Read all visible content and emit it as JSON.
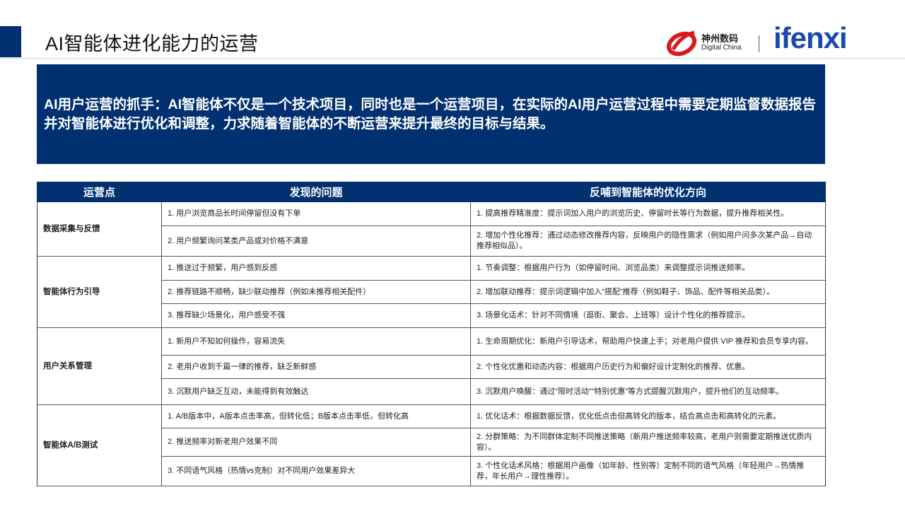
{
  "header": {
    "title": "AI智能体进化能力的运营",
    "logo_digital_china_cn": "神州数码",
    "logo_digital_china_en": "Digital China",
    "logo_ifenxi": "ifenxi",
    "accent_color": "#003070"
  },
  "banner": {
    "text": "AI用户运营的抓手：AI智能体不仅是一个技术项目，同时也是一个运营项目，在实际的AI用户运营过程中需要定期监督数据报告并对智能体进行优化和调整，力求随着智能体的不断运营来提升最终的目标与结果。"
  },
  "table": {
    "columns": [
      "运营点",
      "发现的问题",
      "反哺到智能体的优化方向"
    ],
    "groups": [
      {
        "name": "数据采集与反馈",
        "rows": [
          {
            "problem": "1. 用户浏览商品长时间停留但没有下单",
            "direction": "1. 提高推荐精准度：提示词加入用户的浏览历史、停留时长等行为数据，提升推荐相关性。"
          },
          {
            "problem": "2. 用户频繁询问某类产品或对价格不满意",
            "direction": "2. 增加个性化推荐：通过动态修改推荐内容，反映用户的隐性需求（例如用户问多次某产品→自动推荐相似品）。"
          }
        ]
      },
      {
        "name": "智能体行为引导",
        "rows": [
          {
            "problem": "1. 推送过于频繁，用户感到反感",
            "direction": "1. 节奏调整：根据用户行为（如停留时间、浏览品类）来调整提示词推送频率。"
          },
          {
            "problem": "2. 推荐链路不顺畅，缺少联动推荐（例如未推荐相关配件）",
            "direction": "2. 增加联动推荐：提示词逻辑中加入“搭配”推荐（例如鞋子、饰品、配件等相关品类）。"
          },
          {
            "problem": "3. 推荐缺少场景化，用户感受不强",
            "direction": "3. 场景化话术：针对不同情境（逛街、聚会、上班等）设计个性化的推荐提示。"
          }
        ]
      },
      {
        "name": "用户关系管理",
        "rows": [
          {
            "problem": "1. 新用户不知如何操作，容易流失",
            "direction": "1. 生命周期优化：新用户引导话术，帮助用户快速上手；对老用户提供 VIP 推荐和会员专享内容。"
          },
          {
            "problem": "2. 老用户收到千篇一律的推荐，缺乏新鲜感",
            "direction": "2. 个性化优惠和动态内容：根据用户历史行为和偏好设计定制化的推荐、优惠。"
          },
          {
            "problem": "3. 沉默用户缺乏互动，未能得到有效触达",
            "direction": "3. 沉默用户唤醒：通过“限时活动”“特别优惠”等方式提醒沉默用户，提升他们的互动频率。"
          }
        ]
      },
      {
        "name": "智能体A/B测试",
        "rows": [
          {
            "problem": "1. A/B版本中，A版本点击率高，但转化低；B版本点击率低，但转化高",
            "direction": "1. 优化话术：根据数据反馈，优化低点击但高转化的版本，结合高点击和高转化的元素。"
          },
          {
            "problem": "2. 推送频率对新老用户效果不同",
            "direction": "2. 分群策略：为不同群体定制不同推送策略（新用户推送频率较高，老用户则需要定期推送优质内容）。"
          },
          {
            "problem": "3. 不同语气风格（热情vs克制）对不同用户效果差异大",
            "direction": "3. 个性化话术风格：根据用户画像（如年龄、性别等）定制不同的语气风格（年轻用户→热情推荐，年长用户→理性推荐）。"
          }
        ]
      }
    ]
  }
}
